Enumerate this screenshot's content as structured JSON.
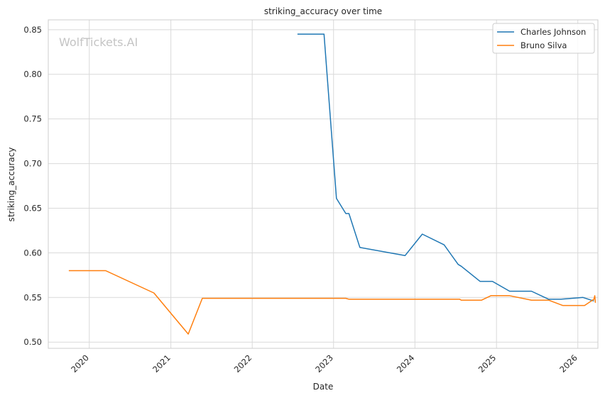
{
  "chart_data": {
    "type": "line",
    "title": "striking_accuracy over time",
    "xlabel": "Date",
    "ylabel": "striking_accuracy",
    "watermark": "WolfTickets.AI",
    "xlim": [
      "2019-07-01",
      "2026-04-01"
    ],
    "ylim": [
      0.493,
      0.861
    ],
    "x_ticks": [
      {
        "date": "2020-01-01",
        "label": "2020"
      },
      {
        "date": "2021-01-01",
        "label": "2021"
      },
      {
        "date": "2022-01-01",
        "label": "2022"
      },
      {
        "date": "2023-01-01",
        "label": "2023"
      },
      {
        "date": "2024-01-01",
        "label": "2024"
      },
      {
        "date": "2025-01-01",
        "label": "2025"
      },
      {
        "date": "2026-01-01",
        "label": "2026"
      }
    ],
    "y_ticks": [
      {
        "value": 0.5,
        "label": "0.50"
      },
      {
        "value": 0.55,
        "label": "0.55"
      },
      {
        "value": 0.6,
        "label": "0.60"
      },
      {
        "value": 0.65,
        "label": "0.65"
      },
      {
        "value": 0.7,
        "label": "0.70"
      },
      {
        "value": 0.75,
        "label": "0.75"
      },
      {
        "value": 0.8,
        "label": "0.80"
      },
      {
        "value": 0.85,
        "label": "0.85"
      }
    ],
    "grid": true,
    "legend_position": "top-right",
    "series": [
      {
        "name": "Charles Johnson",
        "color": "#1f77b4",
        "points": [
          {
            "x": "2022-07-23",
            "y": 0.845
          },
          {
            "x": "2022-11-19",
            "y": 0.845
          },
          {
            "x": "2023-01-14",
            "y": 0.661
          },
          {
            "x": "2023-02-25",
            "y": 0.644
          },
          {
            "x": "2023-03-11",
            "y": 0.644
          },
          {
            "x": "2023-04-29",
            "y": 0.606
          },
          {
            "x": "2023-11-18",
            "y": 0.597
          },
          {
            "x": "2024-02-03",
            "y": 0.621
          },
          {
            "x": "2024-05-11",
            "y": 0.609
          },
          {
            "x": "2024-07-13",
            "y": 0.587
          },
          {
            "x": "2024-07-27",
            "y": 0.585
          },
          {
            "x": "2024-10-19",
            "y": 0.568
          },
          {
            "x": "2024-12-14",
            "y": 0.568
          },
          {
            "x": "2025-03-01",
            "y": 0.557
          },
          {
            "x": "2025-06-07",
            "y": 0.557
          },
          {
            "x": "2025-08-23",
            "y": 0.548
          },
          {
            "x": "2025-10-18",
            "y": 0.548
          },
          {
            "x": "2026-01-24",
            "y": 0.55
          },
          {
            "x": "2026-03-14",
            "y": 0.546
          }
        ]
      },
      {
        "name": "Bruno Silva",
        "color": "#ff7f0e",
        "points": [
          {
            "x": "2019-10-01",
            "y": 0.58
          },
          {
            "x": "2020-03-14",
            "y": 0.58
          },
          {
            "x": "2020-10-17",
            "y": 0.555
          },
          {
            "x": "2021-03-20",
            "y": 0.509
          },
          {
            "x": "2021-05-22",
            "y": 0.549
          },
          {
            "x": "2023-02-25",
            "y": 0.549
          },
          {
            "x": "2023-03-11",
            "y": 0.548
          },
          {
            "x": "2024-07-20",
            "y": 0.548
          },
          {
            "x": "2024-07-27",
            "y": 0.547
          },
          {
            "x": "2024-10-26",
            "y": 0.547
          },
          {
            "x": "2024-12-07",
            "y": 0.552
          },
          {
            "x": "2025-03-01",
            "y": 0.552
          },
          {
            "x": "2025-06-07",
            "y": 0.547
          },
          {
            "x": "2025-08-23",
            "y": 0.547
          },
          {
            "x": "2025-10-25",
            "y": 0.541
          },
          {
            "x": "2026-01-31",
            "y": 0.541
          },
          {
            "x": "2026-03-14",
            "y": 0.548
          },
          {
            "x": "2026-03-18",
            "y": 0.552
          },
          {
            "x": "2026-03-21",
            "y": 0.544
          }
        ]
      }
    ]
  }
}
